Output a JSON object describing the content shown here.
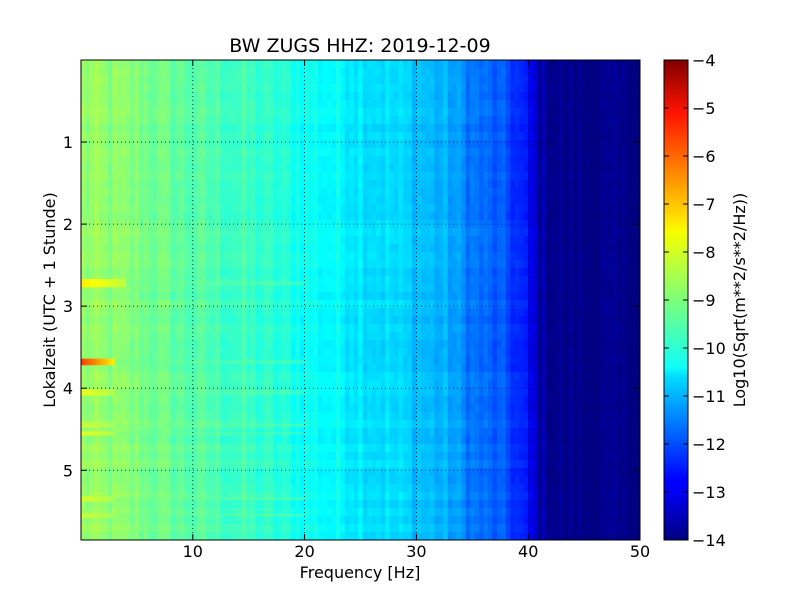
{
  "chart_data": {
    "type": "heatmap",
    "title": "BW ZUGS HHZ: 2019-12-09",
    "xlabel": "Frequency [Hz]",
    "ylabel": "Lokalzeit (UTC + 1 Stunde)",
    "colorbar_label": "Log10(Sqrt(m**2/s**2/Hz))",
    "colormap": "jet",
    "grid": true,
    "x_range": [
      0,
      50
    ],
    "y_range": [
      0,
      5.85
    ],
    "y_inverted": true,
    "x_ticks": [
      10,
      20,
      30,
      40,
      50
    ],
    "x_tick_labels": [
      "10",
      "20",
      "30",
      "40",
      "50"
    ],
    "y_ticks": [
      1,
      2,
      3,
      4,
      5
    ],
    "y_tick_labels": [
      "1",
      "2",
      "3",
      "4",
      "5"
    ],
    "color_range": [
      -14,
      -4
    ],
    "colorbar_ticks": [
      -4,
      -5,
      -6,
      -7,
      -8,
      -9,
      -10,
      -11,
      -12,
      -13,
      -14
    ],
    "colorbar_tick_labels": [
      "−4",
      "−5",
      "−6",
      "−7",
      "−8",
      "−9",
      "−10",
      "−11",
      "−12",
      "−13",
      "−14"
    ],
    "frequency_profile": [
      [
        0,
        -8.8
      ],
      [
        5,
        -9.0
      ],
      [
        10,
        -9.4
      ],
      [
        15,
        -9.7
      ],
      [
        20,
        -10.1
      ],
      [
        25,
        -10.4
      ],
      [
        30,
        -10.8
      ],
      [
        33,
        -11.1
      ],
      [
        35,
        -11.6
      ],
      [
        38,
        -12.0
      ],
      [
        40,
        -12.7
      ],
      [
        41,
        -13.6
      ],
      [
        43,
        -13.9
      ],
      [
        50,
        -14.0
      ]
    ],
    "bursts": [
      {
        "time": 2.72,
        "duration": 0.1,
        "freq_max": 4,
        "value": -7.6
      },
      {
        "time": 3.68,
        "duration": 0.08,
        "freq_max": 3,
        "value": -5.9
      },
      {
        "time": 4.05,
        "duration": 0.08,
        "freq_max": 3,
        "value": -8.0
      },
      {
        "time": 4.45,
        "duration": 0.06,
        "freq_max": 3,
        "value": -8.3
      },
      {
        "time": 4.55,
        "duration": 0.05,
        "freq_max": 3,
        "value": -8.0
      },
      {
        "time": 5.35,
        "duration": 0.07,
        "freq_max": 3,
        "value": -8.2
      },
      {
        "time": 5.55,
        "duration": 0.06,
        "freq_max": 3,
        "value": -8.3
      }
    ]
  }
}
